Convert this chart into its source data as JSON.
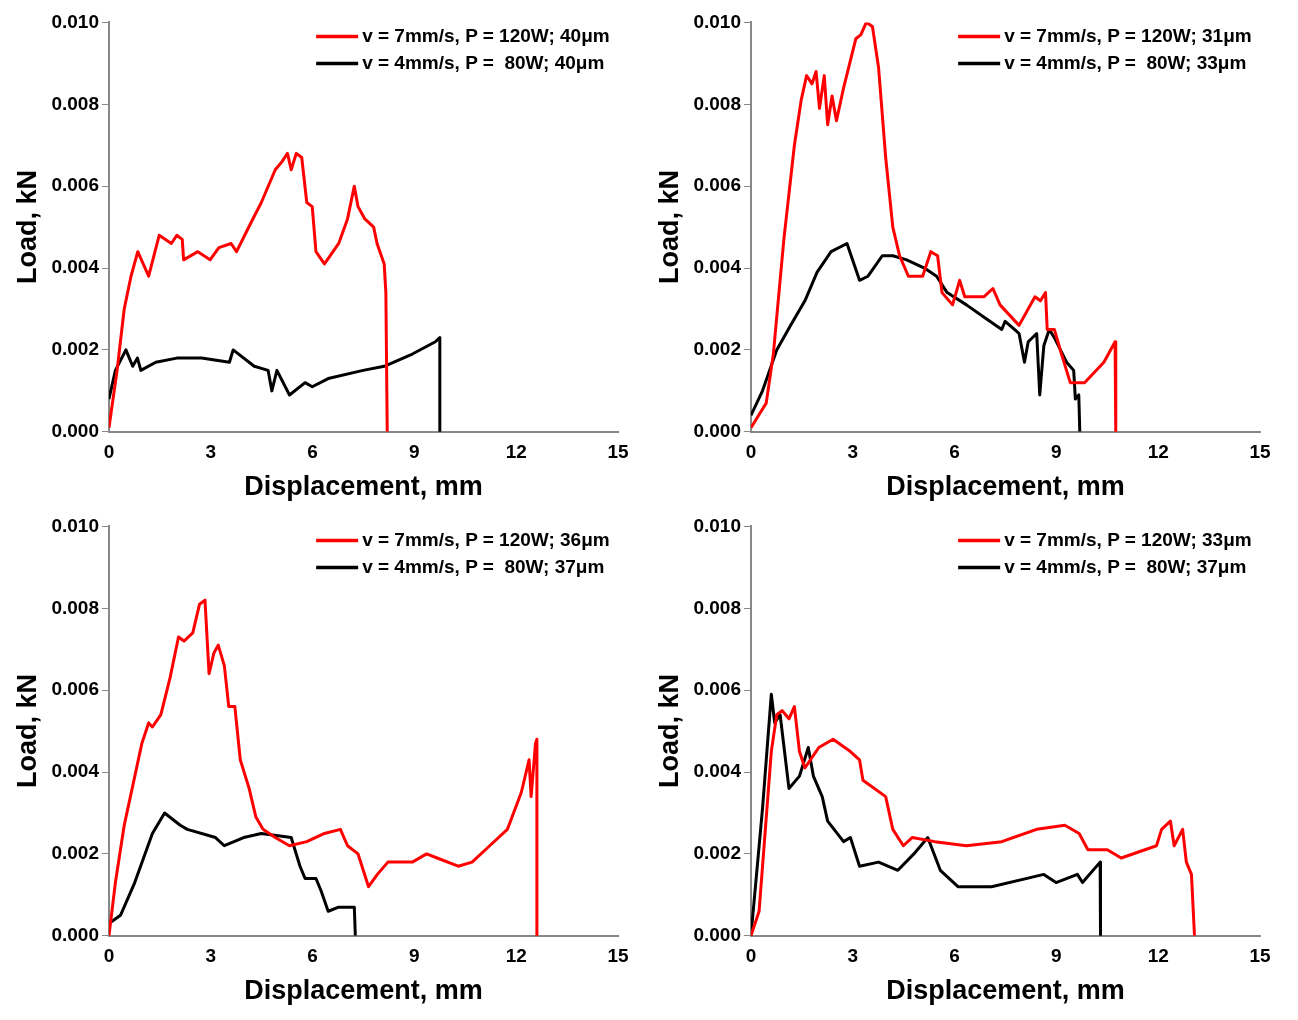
{
  "chart_data": [
    {
      "type": "line",
      "xlabel": "Displacement, mm",
      "ylabel": "Load, kN",
      "xlim": [
        0,
        15
      ],
      "xticks": [
        0,
        3,
        6,
        9,
        12,
        15
      ],
      "ylim": [
        0,
        0.01
      ],
      "yticks": [
        {
          "value": 0,
          "label": "0.000"
        },
        {
          "value": 0.002,
          "label": "0.002"
        },
        {
          "value": 0.004,
          "label": "0.004"
        },
        {
          "value": 0.006,
          "label": "0.006"
        },
        {
          "value": 0.008,
          "label": "0.008"
        },
        {
          "value": 0.01,
          "label": "0.010"
        }
      ],
      "grid": false,
      "legend": "top right",
      "marker": "none",
      "series": [
        {
          "name": "v = 7mm/s, P = 120W; 40μm",
          "color": "#ff0000",
          "x": [
            0,
            0.24,
            0.45,
            0.65,
            0.85,
            1.17,
            1.48,
            1.84,
            2.0,
            2.16,
            2.2,
            2.62,
            2.98,
            3.24,
            3.6,
            3.76,
            4.18,
            4.49,
            4.9,
            5.1,
            5.26,
            5.37,
            5.52,
            5.68,
            5.83,
            5.99,
            6.1,
            6.35,
            6.77,
            7.03,
            7.23,
            7.34,
            7.54,
            7.8,
            7.9,
            8.11,
            8.16,
            8.2
          ],
          "values": [
            0.0001,
            0.0015,
            0.003,
            0.0038,
            0.0044,
            0.0038,
            0.0048,
            0.0046,
            0.0048,
            0.0047,
            0.0042,
            0.0044,
            0.0042,
            0.0045,
            0.0046,
            0.0044,
            0.0051,
            0.0056,
            0.0064,
            0.0066,
            0.0068,
            0.0064,
            0.0068,
            0.0067,
            0.0056,
            0.0055,
            0.0044,
            0.0041,
            0.0046,
            0.0052,
            0.006,
            0.0055,
            0.0052,
            0.005,
            0.0046,
            0.0041,
            0.0034,
            0
          ]
        },
        {
          "name": "v = 4mm/s, P =  80W; 40μm",
          "color": "#000000",
          "x": [
            0,
            0.19,
            0.5,
            0.7,
            0.84,
            0.94,
            1.38,
            2.0,
            2.73,
            3.55,
            3.66,
            4.28,
            4.69,
            4.8,
            4.95,
            5.32,
            5.78,
            5.99,
            6.46,
            7.49,
            8.11,
            8.94,
            9.62,
            9.75,
            9.75
          ],
          "values": [
            0.0008,
            0.0015,
            0.002,
            0.0016,
            0.0018,
            0.0015,
            0.0017,
            0.0018,
            0.0018,
            0.0017,
            0.002,
            0.0016,
            0.0015,
            0.001,
            0.0015,
            0.0009,
            0.0012,
            0.0011,
            0.0013,
            0.0015,
            0.0016,
            0.0019,
            0.0022,
            0.0023,
            0
          ]
        }
      ]
    },
    {
      "type": "line",
      "xlabel": "Displacement, mm",
      "ylabel": "Load, kN",
      "xlim": [
        0,
        15
      ],
      "xticks": [
        0,
        3,
        6,
        9,
        12,
        15
      ],
      "ylim": [
        0,
        0.01
      ],
      "yticks": [
        {
          "value": 0,
          "label": "0.000"
        },
        {
          "value": 0.002,
          "label": "0.002"
        },
        {
          "value": 0.004,
          "label": "0.004"
        },
        {
          "value": 0.006,
          "label": "0.006"
        },
        {
          "value": 0.008,
          "label": "0.008"
        },
        {
          "value": 0.01,
          "label": "0.010"
        }
      ],
      "grid": false,
      "legend": "top right",
      "marker": "none",
      "series": [
        {
          "name": "v = 7mm/s, P = 120W; 31μm",
          "color": "#ff0000",
          "x": [
            0,
            0.45,
            0.66,
            0.97,
            1.28,
            1.48,
            1.64,
            1.8,
            1.92,
            2.02,
            2.16,
            2.26,
            2.39,
            2.52,
            2.73,
            3.09,
            3.24,
            3.4,
            3.58,
            3.76,
            3.97,
            4.18,
            4.38,
            4.64,
            5.06,
            5.3,
            5.5,
            5.63,
            5.94,
            6.15,
            6.3,
            6.87,
            7.13,
            7.34,
            7.9,
            8.37,
            8.53,
            8.68,
            8.73,
            8.94,
            9.15,
            9.41,
            9.83,
            10.4,
            10.73,
            10.75
          ],
          "values": [
            0.0001,
            0.0007,
            0.0019,
            0.0047,
            0.007,
            0.0081,
            0.0087,
            0.0085,
            0.0088,
            0.0079,
            0.0087,
            0.0075,
            0.0082,
            0.0076,
            0.0084,
            0.0096,
            0.0097,
            0.01,
            0.0099,
            0.0089,
            0.0067,
            0.005,
            0.0043,
            0.0038,
            0.0038,
            0.0044,
            0.0043,
            0.0034,
            0.0031,
            0.0037,
            0.0033,
            0.0033,
            0.0035,
            0.0031,
            0.0026,
            0.0033,
            0.0032,
            0.0034,
            0.0025,
            0.0025,
            0.0019,
            0.0012,
            0.0012,
            0.0017,
            0.0022,
            0
          ]
        },
        {
          "name": "v = 4mm/s, P =  80W; 33μm",
          "color": "#000000",
          "x": [
            0,
            0.34,
            0.76,
            1.17,
            1.59,
            1.95,
            2.36,
            2.83,
            3.2,
            3.45,
            3.87,
            4.18,
            4.59,
            5.11,
            5.47,
            5.78,
            6.35,
            6.87,
            7.39,
            7.49,
            7.9,
            8.06,
            8.17,
            8.42,
            8.51,
            8.63,
            8.79,
            8.94,
            9.3,
            9.51,
            9.56,
            9.66,
            9.69
          ],
          "values": [
            0.0004,
            0.001,
            0.002,
            0.0026,
            0.0032,
            0.0039,
            0.0044,
            0.0046,
            0.0037,
            0.0038,
            0.0043,
            0.0043,
            0.0042,
            0.004,
            0.0038,
            0.0034,
            0.0031,
            0.0028,
            0.0025,
            0.0027,
            0.0024,
            0.0017,
            0.0022,
            0.0024,
            0.0009,
            0.0021,
            0.0025,
            0.0023,
            0.0017,
            0.0015,
            0.0008,
            0.0009,
            0
          ]
        }
      ]
    },
    {
      "type": "line",
      "xlabel": "Displacement, mm",
      "ylabel": "Load, kN",
      "xlim": [
        0,
        15
      ],
      "xticks": [
        0,
        3,
        6,
        9,
        12,
        15
      ],
      "ylim": [
        0,
        0.01
      ],
      "yticks": [
        {
          "value": 0,
          "label": "0.000"
        },
        {
          "value": 0.002,
          "label": "0.002"
        },
        {
          "value": 0.004,
          "label": "0.004"
        },
        {
          "value": 0.006,
          "label": "0.006"
        },
        {
          "value": 0.008,
          "label": "0.008"
        },
        {
          "value": 0.01,
          "label": "0.010"
        }
      ],
      "grid": false,
      "legend": "top right",
      "marker": "none",
      "series": [
        {
          "name": "v = 7mm/s, P = 120W; 36μm",
          "color": "#ff0000",
          "x": [
            0,
            0.19,
            0.45,
            0.71,
            0.97,
            1.17,
            1.28,
            1.53,
            1.8,
            2.05,
            2.21,
            2.47,
            2.67,
            2.83,
            2.95,
            3.09,
            3.22,
            3.4,
            3.53,
            3.71,
            3.87,
            4.13,
            4.33,
            4.54,
            4.9,
            5.32,
            5.83,
            6.35,
            6.82,
            7.03,
            7.34,
            7.65,
            7.91,
            8.22,
            8.94,
            9.36,
            9.67,
            10.29,
            10.7,
            11.22,
            11.74,
            12.15,
            12.38,
            12.44,
            12.57,
            12.61,
            12.61
          ],
          "values": [
            0,
            0.0013,
            0.0027,
            0.0037,
            0.0047,
            0.0052,
            0.0051,
            0.0054,
            0.0063,
            0.0073,
            0.0072,
            0.0074,
            0.0081,
            0.0082,
            0.0064,
            0.0069,
            0.0071,
            0.0066,
            0.0056,
            0.0056,
            0.0043,
            0.0036,
            0.0029,
            0.0026,
            0.0024,
            0.0022,
            0.0023,
            0.0025,
            0.0026,
            0.0022,
            0.002,
            0.0012,
            0.0015,
            0.0018,
            0.0018,
            0.002,
            0.0019,
            0.0017,
            0.0018,
            0.0022,
            0.0026,
            0.0035,
            0.0043,
            0.0034,
            0.0047,
            0.0048,
            0
          ]
        },
        {
          "name": "v = 4mm/s, P =  80W; 37μm",
          "color": "#000000",
          "x": [
            0,
            0.34,
            0.76,
            1.28,
            1.64,
            2.1,
            2.31,
            3.14,
            3.4,
            3.97,
            4.49,
            5.37,
            5.63,
            5.78,
            6.1,
            6.25,
            6.46,
            6.77,
            7.23,
            7.26
          ],
          "values": [
            0.0003,
            0.0005,
            0.0013,
            0.0025,
            0.003,
            0.0027,
            0.0026,
            0.0024,
            0.0022,
            0.0024,
            0.0025,
            0.0024,
            0.0017,
            0.0014,
            0.0014,
            0.0011,
            0.0006,
            0.0007,
            0.0007,
            0
          ]
        }
      ]
    },
    {
      "type": "line",
      "xlabel": "Displacement, mm",
      "ylabel": "Load, kN",
      "xlim": [
        0,
        15
      ],
      "xticks": [
        0,
        3,
        6,
        9,
        12,
        15
      ],
      "ylim": [
        0,
        0.01
      ],
      "yticks": [
        {
          "value": 0,
          "label": "0.000"
        },
        {
          "value": 0.002,
          "label": "0.002"
        },
        {
          "value": 0.004,
          "label": "0.004"
        },
        {
          "value": 0.006,
          "label": "0.006"
        },
        {
          "value": 0.008,
          "label": "0.008"
        },
        {
          "value": 0.01,
          "label": "0.010"
        }
      ],
      "grid": false,
      "legend": "top right",
      "marker": "none",
      "series": [
        {
          "name": "v = 7mm/s, P = 120W; 33μm",
          "color": "#ff0000",
          "x": [
            0,
            0.24,
            0.6,
            0.76,
            0.92,
            1.12,
            1.28,
            1.43,
            1.59,
            2.0,
            2.42,
            2.93,
            3.2,
            3.3,
            3.97,
            4.18,
            4.49,
            4.75,
            5.42,
            6.35,
            7.39,
            8.42,
            9.25,
            9.67,
            9.93,
            10.5,
            10.91,
            11.95,
            12.1,
            12.36,
            12.47,
            12.72,
            12.83,
            12.98,
            13.07
          ],
          "values": [
            0,
            0.0006,
            0.0045,
            0.0054,
            0.0055,
            0.0053,
            0.0056,
            0.0045,
            0.0041,
            0.0046,
            0.0048,
            0.0045,
            0.0043,
            0.0038,
            0.0034,
            0.0026,
            0.0022,
            0.0024,
            0.0023,
            0.0022,
            0.0023,
            0.0026,
            0.0027,
            0.0025,
            0.0021,
            0.0021,
            0.0019,
            0.0022,
            0.0026,
            0.0028,
            0.0022,
            0.0026,
            0.0018,
            0.0015,
            0
          ]
        },
        {
          "name": "v = 4mm/s, P =  80W; 37μm",
          "color": "#000000",
          "x": [
            0,
            0.34,
            0.6,
            0.7,
            0.86,
            1.12,
            1.43,
            1.69,
            1.84,
            2.1,
            2.26,
            2.73,
            2.93,
            3.2,
            3.76,
            4.33,
            4.8,
            5.21,
            5.58,
            6.1,
            7.09,
            8.63,
            8.99,
            9.62,
            9.77,
            10.29,
            10.3
          ],
          "values": [
            0,
            0.0031,
            0.0059,
            0.0052,
            0.0054,
            0.0036,
            0.0039,
            0.0046,
            0.0039,
            0.0034,
            0.0028,
            0.0023,
            0.0024,
            0.0017,
            0.0018,
            0.0016,
            0.002,
            0.0024,
            0.0016,
            0.0012,
            0.0012,
            0.0015,
            0.0013,
            0.0015,
            0.0013,
            0.0018,
            0
          ]
        }
      ]
    }
  ]
}
